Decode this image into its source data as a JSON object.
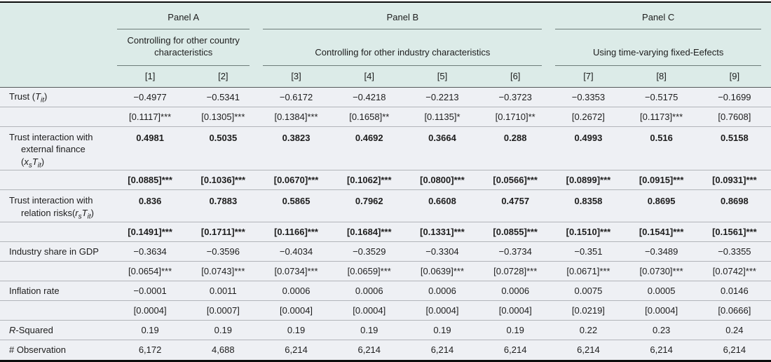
{
  "colors": {
    "header_bg": "#dcebe8",
    "body_bg": "#eef0f4",
    "rule_black": "#0b0b0b",
    "row_line": "#b2b5ba",
    "header_line": "#55595b",
    "panel_line": "#6d7c79",
    "text": "#1d1d1d"
  },
  "header": {
    "panels": [
      {
        "title": "Panel A",
        "subtitle": "Controlling for other country characteristics"
      },
      {
        "title": "Panel B",
        "subtitle": "Controlling for other industry characteristics"
      },
      {
        "title": "Panel C",
        "subtitle": "Using time-varying fixed-Eefects"
      }
    ],
    "col_numbers": [
      "[1]",
      "[2]",
      "[3]",
      "[4]",
      "[5]",
      "[6]",
      "[7]",
      "[8]",
      "[9]"
    ]
  },
  "table": {
    "rows": [
      {
        "name": "trust-coef",
        "bold": false,
        "label": [
          [
            {
              "t": "Trust ("
            },
            {
              "t": "T",
              "i": true
            },
            {
              "t": "it",
              "i": true,
              "s": true
            },
            {
              "t": ")"
            }
          ]
        ],
        "values": [
          "−0.4977",
          "−0.5341",
          "−0.6172",
          "−0.4218",
          "−0.2213",
          "−0.3723",
          "−0.3353",
          "−0.5175",
          "−0.1699"
        ]
      },
      {
        "name": "trust-se",
        "bold": false,
        "label": [],
        "values": [
          "[0.1117]***",
          "[0.1305]***",
          "[0.1384]***",
          "[0.1658]**",
          "[0.1135]*",
          "[0.1710]**",
          "[0.2672]",
          "[0.1173]***",
          "[0.7608]"
        ]
      },
      {
        "name": "extfin-coef",
        "bold": true,
        "label": [
          [
            {
              "t": "Trust interaction with"
            }
          ],
          [
            {
              "t": "external finance"
            }
          ],
          [
            {
              "t": "("
            },
            {
              "t": "x",
              "i": true
            },
            {
              "t": "s",
              "i": true,
              "s": true
            },
            {
              "t": "T",
              "i": true
            },
            {
              "t": "it",
              "i": true,
              "s": true
            },
            {
              "t": ")"
            }
          ]
        ],
        "values": [
          "0.4981",
          "0.5035",
          "0.3823",
          "0.4692",
          "0.3664",
          "0.288",
          "0.4993",
          "0.516",
          "0.5158"
        ]
      },
      {
        "name": "extfin-se",
        "bold": true,
        "label": [],
        "values": [
          "[0.0885]***",
          "[0.1036]***",
          "[0.0670]***",
          "[0.1062]***",
          "[0.0800]***",
          "[0.0566]***",
          "[0.0899]***",
          "[0.0915]***",
          "[0.0931]***"
        ]
      },
      {
        "name": "relrisk-coef",
        "bold": true,
        "label": [
          [
            {
              "t": "Trust interaction with"
            }
          ],
          [
            {
              "t": "relation risks("
            },
            {
              "t": "r",
              "i": true
            },
            {
              "t": "s",
              "i": true,
              "s": true
            },
            {
              "t": "T",
              "i": true
            },
            {
              "t": "it",
              "i": true,
              "s": true
            },
            {
              "t": ")"
            }
          ]
        ],
        "values": [
          "0.836",
          "0.7883",
          "0.5865",
          "0.7962",
          "0.6608",
          "0.4757",
          "0.8358",
          "0.8695",
          "0.8698"
        ]
      },
      {
        "name": "relrisk-se",
        "bold": true,
        "label": [],
        "values": [
          "[0.1491]***",
          "[0.1711]***",
          "[0.1166]***",
          "[0.1684]***",
          "[0.1331]***",
          "[0.0855]***",
          "[0.1510]***",
          "[0.1541]***",
          "[0.1561]***"
        ]
      },
      {
        "name": "industry-share-coef",
        "bold": false,
        "label": [
          [
            {
              "t": "Industry share in GDP"
            }
          ]
        ],
        "values": [
          "−0.3634",
          "−0.3596",
          "−0.4034",
          "−0.3529",
          "−0.3304",
          "−0.3734",
          "−0.351",
          "−0.3489",
          "−0.3355"
        ]
      },
      {
        "name": "industry-share-se",
        "bold": false,
        "label": [],
        "values": [
          "[0.0654]***",
          "[0.0743]***",
          "[0.0734]***",
          "[0.0659]***",
          "[0.0639]***",
          "[0.0728]***",
          "[0.0671]***",
          "[0.0730]***",
          "[0.0742]***"
        ]
      },
      {
        "name": "inflation-coef",
        "bold": false,
        "label": [
          [
            {
              "t": "Inflation rate"
            }
          ]
        ],
        "values": [
          "−0.0001",
          "0.0011",
          "0.0006",
          "0.0006",
          "0.0006",
          "0.0006",
          "0.0075",
          "0.0005",
          "0.0146"
        ]
      },
      {
        "name": "inflation-se",
        "bold": false,
        "label": [],
        "values": [
          "[0.0004]",
          "[0.0007]",
          "[0.0004]",
          "[0.0004]",
          "[0.0004]",
          "[0.0004]",
          "[0.0219]",
          "[0.0004]",
          "[0.0666]"
        ]
      },
      {
        "name": "r-squared",
        "bold": false,
        "label": [
          [
            {
              "t": "R",
              "i": true
            },
            {
              "t": "-Squared"
            }
          ]
        ],
        "values": [
          "0.19",
          "0.19",
          "0.19",
          "0.19",
          "0.19",
          "0.19",
          "0.22",
          "0.23",
          "0.24"
        ]
      },
      {
        "name": "observations",
        "bold": false,
        "label": [
          [
            {
              "t": "# Observation"
            }
          ]
        ],
        "values": [
          "6,172",
          "4,688",
          "6,214",
          "6,214",
          "6,214",
          "6,214",
          "6,214",
          "6,214",
          "6,214"
        ]
      }
    ]
  }
}
